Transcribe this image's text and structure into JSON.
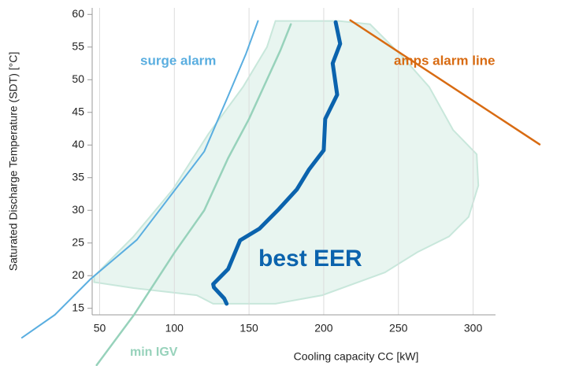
{
  "chart_data": {
    "type": "line",
    "xlabel": "Cooling capacity CC [kW]",
    "ylabel": "Saturated Discharge Temperature (SDT) [°C]",
    "xlim": [
      45,
      315
    ],
    "ylim": [
      14,
      61
    ],
    "xticks": [
      50,
      100,
      150,
      200,
      250,
      300
    ],
    "yticks": [
      15,
      20,
      25,
      30,
      35,
      40,
      45,
      50,
      55,
      60
    ],
    "grid": true,
    "region": {
      "color": "#e6f4ef",
      "x": [
        46.3,
        72.7,
        115,
        126,
        167.7,
        199,
        241,
        262.7,
        283.9,
        297,
        303.5,
        302.4,
        286.6,
        270.6,
        252,
        231,
        210,
        167.7,
        162,
        146,
        122.8,
        99,
        72.7,
        46.3
      ],
      "values": [
        19,
        18.1,
        17,
        15.7,
        15.7,
        17,
        20.5,
        23.6,
        26,
        29,
        33.8,
        38.6,
        42.3,
        48.9,
        53.7,
        58.5,
        59,
        59,
        55,
        48.9,
        41.7,
        33.2,
        26,
        19.9
      ]
    },
    "series": [
      {
        "name": "surge alarm",
        "color": "#5aaee0",
        "x": [
          -2,
          20,
          44,
          75,
          100,
          120,
          136,
          148,
          156
        ],
        "values": [
          10.5,
          14,
          19.5,
          25.5,
          33,
          39,
          47.5,
          54,
          59
        ]
      },
      {
        "name": "min IGV",
        "color": "#97d2bb",
        "x": [
          48,
          73,
          100,
          120,
          136,
          150,
          162,
          171,
          178
        ],
        "values": [
          6.3,
          14,
          23.5,
          30,
          38,
          44,
          50,
          54.5,
          58.5
        ]
      },
      {
        "name": "best EER",
        "color": "#0b63ad",
        "x": [
          135,
          133.4,
          126.5,
          126,
          136,
          144,
          157,
          170,
          182,
          190,
          200,
          201,
          209,
          206,
          211,
          208
        ],
        "values": [
          15.7,
          16.5,
          18.2,
          18.7,
          21,
          25.4,
          27.2,
          30.2,
          33.2,
          36.2,
          39.2,
          44,
          47.7,
          52.5,
          55.5,
          58.8
        ]
      },
      {
        "name": "amps alarm line",
        "color": "#d86b12",
        "x": [
          217.8,
          344.5
        ],
        "values": [
          59.1,
          40.1
        ]
      }
    ]
  }
}
